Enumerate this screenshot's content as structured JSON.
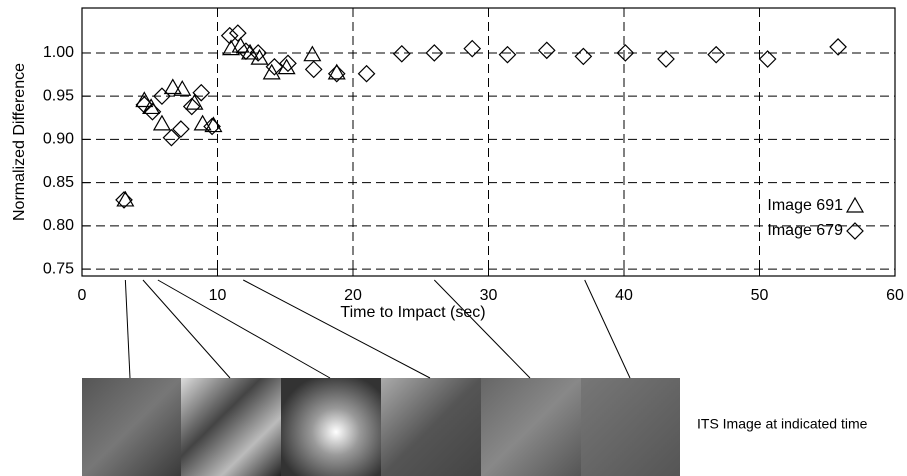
{
  "chart_data": {
    "type": "scatter",
    "xlabel": "Time to Impact (sec)",
    "ylabel": "Normalized Difference",
    "xlim": [
      0,
      60
    ],
    "ylim": [
      0.742,
      1.052
    ],
    "xticks": [
      0,
      10,
      20,
      30,
      40,
      50,
      60
    ],
    "yticks": [
      {
        "value": 0.75,
        "label": "0.75"
      },
      {
        "value": 0.8,
        "label": "0.80"
      },
      {
        "value": 0.85,
        "label": "0.85"
      },
      {
        "value": 0.9,
        "label": "0.90"
      },
      {
        "value": 0.95,
        "label": "0.95"
      },
      {
        "value": 1.0,
        "label": "1.00"
      }
    ],
    "grid": true,
    "legend": "lower right",
    "series": [
      {
        "name": "Image 691",
        "marker": "triangle",
        "color": "#000000",
        "x": [
          3.2,
          4.6,
          5.1,
          5.9,
          6.7,
          7.4,
          8.3,
          8.9,
          9.7,
          11.0,
          11.7,
          12.4,
          13.1,
          14.0,
          15.1,
          17.0,
          18.8
        ],
        "values": [
          0.83,
          0.945,
          0.937,
          0.918,
          0.96,
          0.958,
          0.942,
          0.918,
          0.916,
          1.005,
          1.008,
          1.0,
          0.994,
          0.977,
          0.983,
          0.998,
          0.977
        ]
      },
      {
        "name": "Image 679",
        "marker": "diamond",
        "color": "#000000",
        "x": [
          3.1,
          4.6,
          5.2,
          5.9,
          6.6,
          7.3,
          8.1,
          8.8,
          9.6,
          10.9,
          11.5,
          12.1,
          13.0,
          14.2,
          15.2,
          17.1,
          18.8,
          21.0,
          23.6,
          26.0,
          28.8,
          31.4,
          34.3,
          37.0,
          40.1,
          43.1,
          46.8,
          50.6,
          55.8
        ],
        "values": [
          0.83,
          0.94,
          0.932,
          0.95,
          0.902,
          0.912,
          0.938,
          0.954,
          0.915,
          1.02,
          1.023,
          1.002,
          1.0,
          0.984,
          0.988,
          0.981,
          0.976,
          0.976,
          0.999,
          1.0,
          1.005,
          0.998,
          1.003,
          0.996,
          1.0,
          0.993,
          0.998,
          0.993,
          1.007
        ]
      }
    ],
    "image_times": [
      3.2,
      4.5,
      5.6,
      11.9,
      26.0,
      37.1
    ],
    "annotation": "ITS Image at indicated time"
  }
}
